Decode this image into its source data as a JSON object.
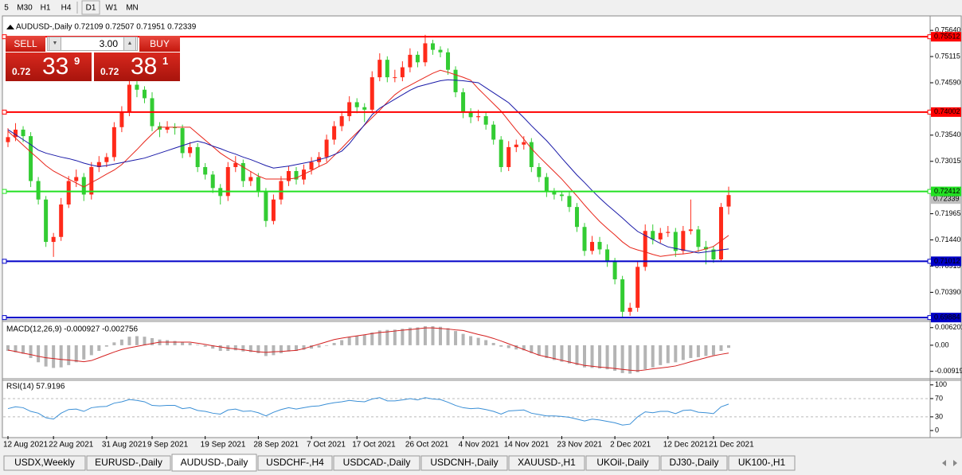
{
  "toolbar": {
    "periods": [
      "5",
      "M30",
      "H1",
      "H4",
      "D1",
      "W1",
      "MN"
    ]
  },
  "trade_panel": {
    "sell": "SELL",
    "lot": "3.00",
    "buy": "BUY",
    "bid": {
      "prefix": "0.72",
      "big": "33",
      "small": "9"
    },
    "ask": {
      "prefix": "0.72",
      "big": "38",
      "small": "1"
    }
  },
  "chart_data": {
    "type": "candlestick",
    "title": "AUDUSD-,Daily  0.72109 0.72507 0.71951 0.72339",
    "up_color": "#ff2a1a",
    "down_color": "#33cc33",
    "categories": [
      "12 Aug 2021",
      null,
      null,
      null,
      null,
      null,
      "22 Aug 2021",
      null,
      null,
      null,
      null,
      null,
      null,
      "31 Aug 2021",
      null,
      null,
      null,
      null,
      null,
      "9 Sep 2021",
      null,
      null,
      null,
      null,
      null,
      null,
      "19 Sep 2021",
      null,
      null,
      null,
      null,
      null,
      null,
      "28 Sep 2021",
      null,
      null,
      null,
      null,
      null,
      null,
      "7 Oct 2021",
      null,
      null,
      null,
      null,
      null,
      "17 Oct 2021",
      null,
      null,
      null,
      null,
      null,
      null,
      "26 Oct 2021",
      null,
      null,
      null,
      null,
      null,
      null,
      "4 Nov 2021",
      null,
      null,
      null,
      null,
      null,
      "14 Nov 2021",
      null,
      null,
      null,
      null,
      null,
      null,
      "23 Nov 2021",
      null,
      null,
      null,
      null,
      null,
      null,
      "2 Dec 2021",
      null,
      null,
      null,
      null,
      null,
      null,
      "12 Dec 2021",
      null,
      null,
      null,
      null,
      null,
      "21 Dec 2021",
      null,
      null
    ],
    "open": [
      0.734,
      0.735,
      0.7365,
      0.7352,
      0.7262,
      0.7225,
      0.714,
      0.715,
      0.7215,
      0.7262,
      0.727,
      0.7235,
      0.729,
      0.73,
      0.731,
      0.737,
      0.74,
      0.7455,
      0.7445,
      0.7428,
      0.7372,
      0.7365,
      0.737,
      0.7368,
      0.7318,
      0.733,
      0.729,
      0.7275,
      0.7248,
      0.7232,
      0.729,
      0.7298,
      0.7262,
      0.727,
      0.724,
      0.7182,
      0.7225,
      0.7262,
      0.7282,
      0.7265,
      0.7285,
      0.73,
      0.731,
      0.7345,
      0.7372,
      0.7392,
      0.742,
      0.741,
      0.7405,
      0.747,
      0.7505,
      0.747,
      0.747,
      0.749,
      0.7515,
      0.75,
      0.7538,
      0.7525,
      0.752,
      0.7485,
      0.744,
      0.74,
      0.739,
      0.7392,
      0.7375,
      0.7345,
      0.729,
      0.733,
      0.7335,
      0.734,
      0.729,
      0.727,
      0.724,
      0.7235,
      0.7232,
      0.721,
      0.717,
      0.7122,
      0.714,
      0.7125,
      0.71,
      0.7065,
      0.7,
      0.7008,
      0.709,
      0.7162,
      0.7145,
      0.7158,
      0.716,
      0.7122,
      0.7162,
      0.7165,
      0.713,
      0.7125,
      0.7105,
      0.72109
    ],
    "high": [
      0.7368,
      0.7378,
      0.7372,
      0.736,
      0.727,
      0.7232,
      0.7158,
      0.7228,
      0.7272,
      0.7285,
      0.7278,
      0.73,
      0.7312,
      0.7318,
      0.738,
      0.7412,
      0.7468,
      0.7462,
      0.7452,
      0.744,
      0.738,
      0.7382,
      0.7378,
      0.7375,
      0.734,
      0.7338,
      0.7298,
      0.7282,
      0.7256,
      0.73,
      0.7312,
      0.7305,
      0.7282,
      0.7278,
      0.7248,
      0.7235,
      0.7272,
      0.7292,
      0.729,
      0.7295,
      0.731,
      0.732,
      0.7355,
      0.7382,
      0.7402,
      0.7432,
      0.7428,
      0.7418,
      0.7482,
      0.7518,
      0.7512,
      0.7485,
      0.7502,
      0.7528,
      0.7522,
      0.7555,
      0.7545,
      0.7532,
      0.7528,
      0.7492,
      0.7448,
      0.7408,
      0.7405,
      0.74,
      0.7382,
      0.7352,
      0.7342,
      0.7345,
      0.7352,
      0.7348,
      0.7298,
      0.7278,
      0.7248,
      0.7242,
      0.724,
      0.7218,
      0.7178,
      0.7152,
      0.715,
      0.7135,
      0.7108,
      0.7072,
      0.7018,
      0.71,
      0.7175,
      0.7175,
      0.7168,
      0.7172,
      0.7168,
      0.7172,
      0.7225,
      0.7172,
      0.7142,
      0.7132,
      0.7218,
      0.72507
    ],
    "low": [
      0.733,
      0.7342,
      0.734,
      0.725,
      0.7215,
      0.713,
      0.711,
      0.7142,
      0.7208,
      0.725,
      0.7222,
      0.7225,
      0.728,
      0.729,
      0.7302,
      0.736,
      0.7392,
      0.743,
      0.7418,
      0.7362,
      0.735,
      0.7358,
      0.7355,
      0.7308,
      0.731,
      0.728,
      0.7265,
      0.7238,
      0.7215,
      0.7222,
      0.728,
      0.725,
      0.7252,
      0.723,
      0.717,
      0.7175,
      0.7215,
      0.7252,
      0.7255,
      0.7255,
      0.7275,
      0.729,
      0.73,
      0.7335,
      0.7362,
      0.7382,
      0.7398,
      0.738,
      0.7398,
      0.7462,
      0.746,
      0.746,
      0.7462,
      0.748,
      0.749,
      0.7492,
      0.7515,
      0.751,
      0.7475,
      0.743,
      0.7388,
      0.7378,
      0.7382,
      0.7365,
      0.7335,
      0.728,
      0.7282,
      0.732,
      0.7325,
      0.728,
      0.726,
      0.723,
      0.7225,
      0.7222,
      0.72,
      0.716,
      0.7112,
      0.7115,
      0.7115,
      0.709,
      0.7055,
      0.699,
      0.6992,
      0.7,
      0.7082,
      0.7135,
      0.7138,
      0.715,
      0.711,
      0.7115,
      0.7155,
      0.712,
      0.7095,
      0.7098,
      0.71,
      0.71951
    ],
    "close": [
      0.735,
      0.7365,
      0.7352,
      0.7262,
      0.7225,
      0.714,
      0.715,
      0.7215,
      0.7262,
      0.727,
      0.7235,
      0.729,
      0.73,
      0.731,
      0.737,
      0.74,
      0.7455,
      0.7445,
      0.7428,
      0.7372,
      0.7365,
      0.737,
      0.7368,
      0.7318,
      0.733,
      0.729,
      0.7275,
      0.7248,
      0.7232,
      0.729,
      0.7298,
      0.7262,
      0.727,
      0.724,
      0.7182,
      0.7225,
      0.7262,
      0.7282,
      0.7265,
      0.7285,
      0.73,
      0.731,
      0.7345,
      0.7372,
      0.7392,
      0.742,
      0.741,
      0.7405,
      0.747,
      0.7505,
      0.747,
      0.747,
      0.749,
      0.7515,
      0.75,
      0.7538,
      0.7525,
      0.752,
      0.7485,
      0.744,
      0.74,
      0.739,
      0.7392,
      0.7375,
      0.7345,
      0.729,
      0.733,
      0.7335,
      0.734,
      0.729,
      0.727,
      0.724,
      0.7235,
      0.7232,
      0.721,
      0.717,
      0.7122,
      0.714,
      0.7125,
      0.71,
      0.7065,
      0.7,
      0.7008,
      0.709,
      0.7162,
      0.7145,
      0.7158,
      0.716,
      0.7122,
      0.7162,
      0.7165,
      0.713,
      0.7125,
      0.7105,
      0.721,
      0.72339
    ],
    "ma_fast": {
      "color": "#e8251a",
      "values": [
        0.7362,
        0.7348,
        0.7334,
        0.732,
        0.7307,
        0.7293,
        0.7282,
        0.7274,
        0.7266,
        0.7258,
        0.725,
        0.7259,
        0.7267,
        0.7276,
        0.7284,
        0.7295,
        0.731,
        0.7325,
        0.7341,
        0.7356,
        0.737,
        0.737,
        0.737,
        0.737,
        0.737,
        0.7357,
        0.7344,
        0.7331,
        0.7318,
        0.7308,
        0.7299,
        0.729,
        0.7281,
        0.7272,
        0.7266,
        0.7266,
        0.7266,
        0.7266,
        0.7268,
        0.7276,
        0.7283,
        0.7291,
        0.7298,
        0.7313,
        0.7328,
        0.7344,
        0.7359,
        0.7374,
        0.7389,
        0.7404,
        0.742,
        0.7435,
        0.7446,
        0.7454,
        0.7462,
        0.747,
        0.7478,
        0.7484,
        0.748,
        0.7475,
        0.747,
        0.7464,
        0.7447,
        0.7432,
        0.7417,
        0.7402,
        0.7383,
        0.7364,
        0.7346,
        0.7327,
        0.7311,
        0.7296,
        0.7281,
        0.7266,
        0.7249,
        0.7232,
        0.7214,
        0.7197,
        0.7181,
        0.7167,
        0.7154,
        0.714,
        0.7129,
        0.7124,
        0.712,
        0.7115,
        0.7111,
        0.7113,
        0.7115,
        0.7116,
        0.7118,
        0.7122,
        0.7126,
        0.7131,
        0.7142,
        0.7153
      ]
    },
    "ma_slow": {
      "color": "#1a1aa8",
      "values": [
        0.7365,
        0.7355,
        0.7345,
        0.7335,
        0.7324,
        0.7318,
        0.7314,
        0.731,
        0.7307,
        0.7303,
        0.7298,
        0.7294,
        0.7291,
        0.7293,
        0.7296,
        0.7299,
        0.7302,
        0.7305,
        0.7308,
        0.7313,
        0.7318,
        0.7323,
        0.7328,
        0.7333,
        0.7338,
        0.7342,
        0.7338,
        0.7332,
        0.7327,
        0.7321,
        0.7316,
        0.731,
        0.7305,
        0.7299,
        0.7293,
        0.7288,
        0.729,
        0.7292,
        0.7295,
        0.7298,
        0.7301,
        0.7305,
        0.7309,
        0.7315,
        0.7322,
        0.7337,
        0.7356,
        0.7375,
        0.7395,
        0.7408,
        0.7417,
        0.7426,
        0.7435,
        0.7444,
        0.7451,
        0.7455,
        0.7459,
        0.7463,
        0.7465,
        0.7464,
        0.7463,
        0.7461,
        0.7459,
        0.7449,
        0.7439,
        0.7429,
        0.7419,
        0.7404,
        0.7389,
        0.7373,
        0.7358,
        0.7343,
        0.7326,
        0.7308,
        0.7291,
        0.7274,
        0.7259,
        0.7243,
        0.7228,
        0.7214,
        0.7201,
        0.7188,
        0.7174,
        0.7161,
        0.7153,
        0.7145,
        0.7137,
        0.713,
        0.7127,
        0.7124,
        0.7121,
        0.7118,
        0.712,
        0.7122,
        0.7124,
        0.7126
      ]
    },
    "ylim": [
      0.6987,
      0.7577
    ],
    "yticks": [
      {
        "value": 0.7564,
        "label": "0.75640"
      },
      {
        "value": 0.75115,
        "label": "0.75115"
      },
      {
        "value": 0.7459,
        "label": "0.74590"
      },
      {
        "value": 0.7354,
        "label": "0.73540"
      },
      {
        "value": 0.73015,
        "label": "0.73015"
      },
      {
        "value": 0.71965,
        "label": "0.71965"
      },
      {
        "value": 0.7144,
        "label": "0.71440"
      },
      {
        "value": 0.70915,
        "label": "0.70915"
      },
      {
        "value": 0.7039,
        "label": "0.70390"
      }
    ],
    "current_price": {
      "value": 0.72339,
      "color": "#c0c0c0"
    },
    "levels": [
      {
        "value": 0.75512,
        "color": "#ff0000"
      },
      {
        "value": 0.74002,
        "color": "#ff0000"
      },
      {
        "value": 0.72412,
        "color": "#22e022"
      },
      {
        "value": 0.71012,
        "color": "#0000c8"
      },
      {
        "value": 0.69884,
        "color": "#0000c8"
      }
    ],
    "macd": {
      "title": "MACD(12,26,9) -0.000927 -0.002756",
      "bar_color": "#b4b4b4",
      "signal_color": "#d42020",
      "histogram": [
        -0.002,
        -0.0025,
        -0.003,
        -0.0045,
        -0.006,
        -0.0075,
        -0.008,
        -0.0078,
        -0.007,
        -0.006,
        -0.005,
        -0.0035,
        -0.002,
        -0.0005,
        0.001,
        0.002,
        0.003,
        0.0032,
        0.003,
        0.0025,
        0.002,
        0.0018,
        0.0015,
        0.001,
        0.0008,
        0.0002,
        -0.0005,
        -0.0012,
        -0.002,
        -0.002,
        -0.0018,
        -0.0022,
        -0.0024,
        -0.0028,
        -0.0038,
        -0.0035,
        -0.0028,
        -0.0022,
        -0.002,
        -0.0016,
        -0.0012,
        -0.0008,
        -0.0002,
        0.0008,
        0.0018,
        0.0028,
        0.0033,
        0.0036,
        0.0045,
        0.0052,
        0.0054,
        0.0055,
        0.0058,
        0.0062,
        0.0063,
        0.0067,
        0.0067,
        0.0065,
        0.006,
        0.005,
        0.004,
        0.0032,
        0.0026,
        0.0018,
        0.0008,
        -0.0005,
        -0.001,
        -0.0015,
        -0.0018,
        -0.0028,
        -0.0036,
        -0.0045,
        -0.0052,
        -0.0058,
        -0.0064,
        -0.007,
        -0.0078,
        -0.008,
        -0.0082,
        -0.0085,
        -0.009,
        -0.0098,
        -0.01,
        -0.0095,
        -0.0085,
        -0.0078,
        -0.007,
        -0.0063,
        -0.006,
        -0.0052,
        -0.0045,
        -0.0042,
        -0.0038,
        -0.0035,
        -0.002,
        -0.000927
      ],
      "signal": [
        -0.0017,
        -0.0022,
        -0.0028,
        -0.0033,
        -0.0039,
        -0.0044,
        -0.0047,
        -0.005,
        -0.0052,
        -0.0055,
        -0.0058,
        -0.0054,
        -0.0044,
        -0.0034,
        -0.0024,
        -0.0015,
        -0.0009,
        -0.0004,
        0.0001,
        0.0006,
        0.0011,
        0.0011,
        0.0011,
        0.0011,
        0.0011,
        0.0007,
        0.0003,
        -0.0002,
        -0.0006,
        -0.001,
        -0.0013,
        -0.0016,
        -0.002,
        -0.0023,
        -0.0025,
        -0.0023,
        -0.0022,
        -0.002,
        -0.0018,
        -0.0012,
        -0.0004,
        0.0004,
        0.0012,
        0.002,
        0.0025,
        0.0029,
        0.0033,
        0.0037,
        0.0041,
        0.0045,
        0.0047,
        0.005,
        0.0053,
        0.0055,
        0.0058,
        0.0061,
        0.0061,
        0.0059,
        0.0057,
        0.0054,
        0.0052,
        0.0045,
        0.0038,
        0.0032,
        0.0024,
        0.0015,
        0.0005,
        -0.0005,
        -0.0015,
        -0.0025,
        -0.0035,
        -0.0041,
        -0.0047,
        -0.0053,
        -0.0059,
        -0.0065,
        -0.0071,
        -0.0074,
        -0.0077,
        -0.0079,
        -0.0082,
        -0.0085,
        -0.0088,
        -0.009,
        -0.0087,
        -0.0083,
        -0.008,
        -0.0077,
        -0.0073,
        -0.0066,
        -0.0058,
        -0.0051,
        -0.0044,
        -0.0037,
        -0.0032,
        -0.002756
      ],
      "ylim": [
        -0.0118,
        0.0081
      ],
      "yticks": [
        0.006201,
        {
          "value": 0,
          "label": "0.00"
        },
        -0.009197
      ]
    },
    "rsi": {
      "title": "RSI(14) 57.9196",
      "color": "#3a8fd6",
      "values": [
        48,
        52,
        50,
        42,
        38,
        28,
        25,
        38,
        46,
        47,
        42,
        50,
        52,
        53,
        60,
        63,
        68,
        66,
        63,
        55,
        54,
        55,
        55,
        48,
        50,
        44,
        42,
        38,
        36,
        45,
        47,
        42,
        43,
        39,
        32,
        40,
        46,
        50,
        47,
        50,
        53,
        54,
        58,
        61,
        63,
        66,
        64,
        63,
        69,
        72,
        65,
        65,
        67,
        70,
        67,
        72,
        69,
        68,
        62,
        55,
        50,
        48,
        49,
        46,
        42,
        36,
        43,
        44,
        45,
        38,
        35,
        32,
        32,
        31,
        29,
        25,
        21,
        25,
        23,
        20,
        17,
        12,
        14,
        30,
        41,
        39,
        42,
        42,
        37,
        44,
        45,
        40,
        39,
        37,
        52,
        57.9196
      ],
      "ylim": [
        -12,
        110
      ],
      "yticks": [
        100,
        70,
        30,
        0
      ],
      "levels": [
        70,
        30
      ]
    }
  },
  "tabs": {
    "items": [
      "USDX,Weekly",
      "EURUSD-,Daily",
      "AUDUSD-,Daily",
      "USDCHF-,H4",
      "USDCAD-,Daily",
      "USDCNH-,Daily",
      "XAUUSD-,H1",
      "UKOil-,Daily",
      "DJ30-,Daily",
      "UK100-,H1"
    ],
    "active": 2
  }
}
